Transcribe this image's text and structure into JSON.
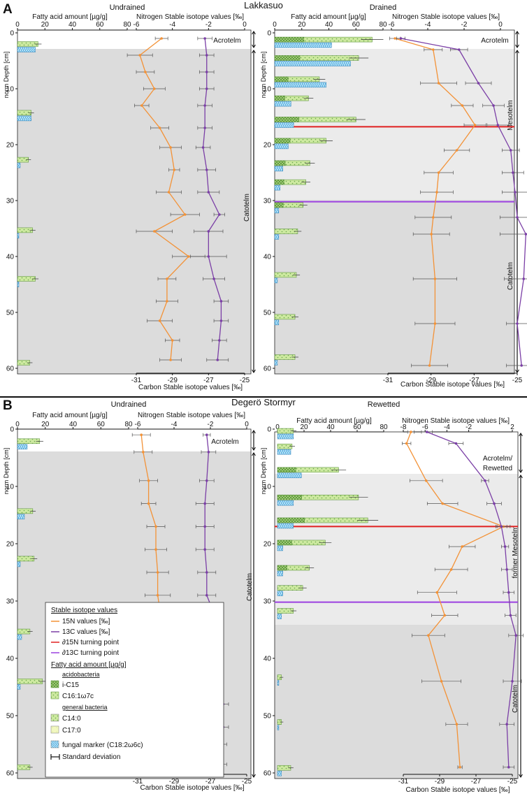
{
  "panels": [
    {
      "letter": "A",
      "site": "Lakkasuo",
      "left": {
        "condition": "Undrained",
        "zones": [
          "Acrotelm",
          "Catotelm"
        ]
      },
      "right": {
        "condition": "Drained",
        "zones": [
          "Acrotelm",
          "Mesotelm",
          "Catotelm"
        ]
      }
    },
    {
      "letter": "B",
      "site": "Degerö Stormyr",
      "left": {
        "condition": "Undrained",
        "zones": [
          "Acrotelm",
          "Catotelm"
        ]
      },
      "right": {
        "condition": "Rewetted",
        "zones": [
          "Acrotelm/",
          "Rewetted",
          "former Mesotelm",
          "Catotelm"
        ]
      }
    }
  ],
  "axis_labels": {
    "fatty_acid": "Fatty acid amount [µg/g]",
    "nitrogen": "Nitrogen Stable isotope values [‰]",
    "carbon": "Carbon Stable isotope values [‰]",
    "depth": "norm Depth [cm]"
  },
  "legend": {
    "title_iso": "Stable isotope values",
    "n15": "15N values [‰]",
    "c13": "13C values [‰]",
    "n_turn": "∂15N turning point",
    "c_turn": "∂13C turning point",
    "title_fa": "Fatty acid amount [µg/g]",
    "acido": "acidobacteria",
    "ic15": "i-C15",
    "c16": "C16:1ω7c",
    "general": "general bacteria",
    "c14": "C14:0",
    "c17": "C17:0",
    "fungal": "fungal marker (C18:2ω6c)",
    "sd": "Standard deviation"
  },
  "colors": {
    "n15": "#f39237",
    "c13": "#7b3fa6",
    "n_turn": "#e02020",
    "c_turn": "#9b40e0",
    "bg_catotelm": "#dcdcdc",
    "bg_mesotelm": "#ebebeb",
    "fa_green": "#cde9a0",
    "fa_light": "#f2f8c0",
    "fa_fungal": "#9fd6f2"
  },
  "chart_data": [
    {
      "type": "bar+line",
      "title": "Lakkasuo – Undrained",
      "ylabel": "norm Depth [cm]",
      "ylim": [
        0,
        60
      ],
      "depth_ticks": [
        0,
        10,
        20,
        30,
        40,
        50,
        60
      ],
      "fatty_acid": {
        "xlim": [
          0,
          80
        ],
        "ticks": [
          0,
          20,
          40,
          60,
          80
        ],
        "depths": [
          2.5,
          14.8,
          23.2,
          35.8,
          44.5,
          59.5
        ],
        "bacterial": [
          15,
          10,
          8,
          11,
          13,
          9
        ],
        "fungal": [
          13,
          10,
          2,
          1,
          1,
          0
        ]
      },
      "nitrogen": {
        "xlim": [
          -6,
          0
        ],
        "ticks": [
          -6,
          -4,
          -2,
          0
        ],
        "depths": [
          1,
          4,
          7,
          10,
          13,
          17,
          20.5,
          24.5,
          28.5,
          32.5,
          35.5,
          40,
          44,
          48,
          51.5,
          55,
          58.5
        ],
        "values": [
          -4.6,
          -5.8,
          -5.5,
          -5,
          -5.7,
          -4.7,
          -4.1,
          -3.9,
          -4.2,
          -3.3,
          -5.0,
          -3.1,
          -4.3,
          -4.3,
          -4.7,
          -4.0,
          -4.1
        ],
        "errors": [
          0.35,
          0.7,
          0.5,
          0.6,
          0.4,
          0.5,
          0.6,
          0.3,
          0.7,
          0.8,
          1.0,
          0.9,
          0.5,
          0.6,
          0.7,
          0.4,
          0.6
        ]
      },
      "carbon": {
        "xlim": [
          -31,
          -25
        ],
        "ticks": [
          -31,
          -29,
          -27,
          -25
        ],
        "depths": [
          1,
          4,
          7,
          10,
          13,
          17,
          20.5,
          24.5,
          28.5,
          32.5,
          35.5,
          40,
          44,
          48,
          51.5,
          55,
          58.5
        ],
        "values": [
          -27.2,
          -27.1,
          -27.1,
          -27.1,
          -27.2,
          -27.2,
          -27.3,
          -27.1,
          -27.0,
          -26.4,
          -27.0,
          -27.0,
          -26.7,
          -26.3,
          -26.3,
          -26.4,
          -26.5
        ],
        "errors": [
          0.4,
          0.4,
          0.4,
          0.4,
          0.4,
          0.4,
          0.4,
          0.5,
          0.6,
          0.3,
          0.8,
          1.0,
          0.6,
          0.4,
          0.4,
          0.4,
          0.6
        ]
      }
    },
    {
      "type": "bar+line",
      "title": "Lakkasuo – Drained",
      "ylabel": "norm Depth [cm]",
      "ylim": [
        0,
        60
      ],
      "depth_ticks": [
        0,
        10,
        20,
        30,
        40,
        50,
        60
      ],
      "turning_points": {
        "n15_depth": 16.8,
        "c13_depth": 30.2
      },
      "fatty_acid": {
        "xlim": [
          0,
          80
        ],
        "ticks": [
          0,
          20,
          40,
          60,
          80
        ],
        "depths": [
          1.7,
          5,
          8.8,
          12.2,
          16,
          19.8,
          23.8,
          27.2,
          31.3,
          36,
          43.8,
          51.3,
          58.5
        ],
        "bacterial": [
          72,
          62,
          33,
          25,
          60,
          38,
          26,
          23,
          21,
          17,
          16,
          15,
          15
        ],
        "fungal": [
          42,
          56,
          38,
          12,
          14,
          10,
          6,
          4,
          3,
          3,
          2,
          3,
          2
        ]
      },
      "nitrogen": {
        "xlim": [
          -6,
          0
        ],
        "ticks": [
          -6,
          -4,
          -2,
          0
        ],
        "depths": [
          1,
          3,
          9,
          13,
          16.5,
          21,
          25,
          28.5,
          33,
          36,
          44,
          52,
          59.5
        ],
        "values": [
          -5.8,
          -3.7,
          -3.4,
          -2.1,
          -1.4,
          -2.4,
          -3.4,
          -3.5,
          -3.7,
          -3.8,
          -3.6,
          -3.6,
          -3.9
        ],
        "errors": [
          0.3,
          0.5,
          1.0,
          0.6,
          0.6,
          0.7,
          0.8,
          0.9,
          1.0,
          1.0,
          1.2,
          1.1,
          1.0
        ]
      },
      "carbon": {
        "xlim": [
          -31,
          -25
        ],
        "ticks": [
          -31,
          -29,
          -27,
          -25
        ],
        "depths": [
          1,
          3,
          9,
          13,
          16.5,
          21,
          25,
          28.5,
          33,
          36,
          44,
          52,
          59.5
        ],
        "values": [
          -30.4,
          -27.7,
          -26.8,
          -26.1,
          -25.9,
          -25.3,
          -25.2,
          -25.1,
          -25.0,
          -24.6,
          -24.7,
          -25.0,
          -24.8
        ],
        "errors": [
          0.2,
          0.4,
          0.6,
          0.5,
          0.5,
          0.4,
          0.5,
          0.6,
          0.8,
          1.2,
          0.9,
          0.5,
          0.7
        ]
      }
    },
    {
      "type": "bar+line",
      "title": "Degerö Stormyr – Undrained",
      "ylabel": "norm Depth [cm]",
      "ylim": [
        0,
        60
      ],
      "depth_ticks": [
        0,
        10,
        20,
        30,
        40,
        50,
        60
      ],
      "fatty_acid": {
        "xlim": [
          0,
          80
        ],
        "ticks": [
          0,
          20,
          40,
          60,
          80
        ],
        "depths": [
          2.6,
          14.8,
          23.1,
          35.8,
          44.5,
          59.5
        ],
        "bacterial": [
          16,
          11,
          12,
          9,
          18,
          9
        ],
        "fungal": [
          7,
          5,
          2,
          3,
          2,
          0
        ]
      },
      "nitrogen": {
        "xlim": [
          -6,
          0
        ],
        "ticks": [
          -6,
          -4,
          -2,
          0
        ],
        "depths": [
          1,
          4,
          9,
          13,
          17,
          21,
          25,
          29,
          33,
          36,
          40,
          44,
          48,
          52,
          55,
          58.5
        ],
        "values": [
          -5.8,
          -5.7,
          -5.4,
          -5.4,
          -5.0,
          -5.0,
          -4.9,
          -4.9,
          -4.7,
          -4.7,
          -4.7,
          -4.7,
          -4.7,
          -4.9,
          -4.7,
          -5.0
        ],
        "errors": [
          0.5,
          0.5,
          0.5,
          0.4,
          0.5,
          0.6,
          0.6,
          0.7,
          0.8,
          0.7,
          0.9,
          1.0,
          0.9,
          0.5,
          1.0,
          0.7
        ]
      },
      "carbon": {
        "xlim": [
          -31,
          -25
        ],
        "ticks": [
          -31,
          -29,
          -27,
          -25
        ],
        "depths": [
          1,
          4,
          9,
          13,
          17,
          21,
          25,
          29,
          33,
          36,
          40,
          44,
          48,
          52,
          55,
          58.5
        ],
        "values": [
          -27.2,
          -27.1,
          -27.2,
          -27.3,
          -27.3,
          -27.3,
          -27.2,
          -27.2,
          -26.7,
          -27.0,
          -27.1,
          -26.9,
          -26.3,
          -26.3,
          -26.4,
          -26.5
        ],
        "errors": [
          0.2,
          0.4,
          0.4,
          0.5,
          0.5,
          0.5,
          0.5,
          0.5,
          0.3,
          0.4,
          0.4,
          0.5,
          0.3,
          0.3,
          0.3,
          0.4
        ]
      }
    },
    {
      "type": "bar+line",
      "title": "Degerö Stormyr – Rewetted",
      "ylabel": "norm Depth [cm]",
      "ylim": [
        0,
        60
      ],
      "depth_ticks": [
        0,
        10,
        20,
        30,
        40,
        50,
        60
      ],
      "turning_points": {
        "n15_depth": 17,
        "c13_depth": 30.2
      },
      "fatty_acid": {
        "xlim": [
          0,
          80
        ],
        "ticks": [
          0,
          20,
          40,
          60,
          80
        ],
        "depths": [
          0.8,
          3.5,
          7.6,
          12.4,
          16.4,
          20.3,
          24.7,
          28.2,
          32.2,
          43.8,
          51.6,
          59.6
        ],
        "bacterial": [
          12,
          11,
          46,
          61,
          68,
          36,
          24,
          19,
          12,
          3,
          3,
          10
        ],
        "fungal": [
          12,
          10,
          18,
          12,
          12,
          4,
          4,
          4,
          3,
          1,
          1,
          3
        ]
      },
      "nitrogen": {
        "xlim": [
          -8,
          2
        ],
        "ticks": [
          -8,
          -6,
          -4,
          -2,
          2
        ],
        "depths": [
          0.5,
          2.5,
          9,
          13,
          17,
          20.5,
          24.5,
          28.5,
          32.5,
          36,
          44,
          51.5,
          59
        ],
        "values": [
          -7.3,
          -7.7,
          -5.9,
          -4.4,
          1.2,
          -2.6,
          -3.6,
          -4.9,
          -4.2,
          -5.7,
          -4.5,
          -3.1,
          -2.8
        ],
        "errors": [
          0.3,
          0.4,
          1.5,
          1.4,
          0.6,
          1.2,
          1.5,
          1.8,
          1.2,
          1.5,
          1.8,
          1.0,
          0.2
        ]
      },
      "carbon": {
        "xlim": [
          -31,
          -25
        ],
        "ticks": [
          -31,
          -29,
          -27,
          -25
        ],
        "depths": [
          0.5,
          2.5,
          9,
          13,
          17,
          20.5,
          24.5,
          28.5,
          32.5,
          36,
          44,
          51.5,
          59
        ],
        "values": [
          -29.7,
          -28.1,
          -26.5,
          -26.0,
          -25.6,
          -25.4,
          -25.3,
          -25.2,
          -25.1,
          -24.8,
          -25.0,
          -25.3,
          -25.2
        ],
        "errors": [
          0.3,
          0.4,
          0.2,
          0.4,
          0.3,
          0.2,
          0.3,
          0.3,
          0.3,
          0.4,
          0.5,
          0.4,
          0.3
        ]
      }
    }
  ]
}
